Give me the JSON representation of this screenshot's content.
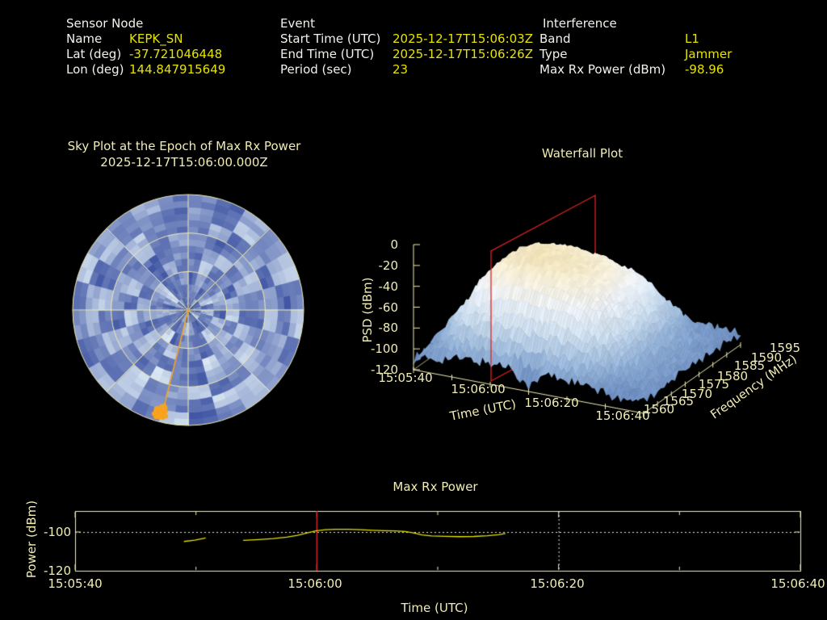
{
  "page": {
    "background": "#000000"
  },
  "colors": {
    "label_text": "#f2f2ec",
    "value_text": "#e6e300",
    "plot_text": "#f0ecb4",
    "data_line": "#e6e300",
    "event_marker_red": "#dd2222",
    "track_marker_orange": "#f9a31e",
    "grid_dotted": "#e8e8e8",
    "sky_palette_dark": "#31479c",
    "sky_palette_light": "#deecf6"
  },
  "header": {
    "sensor_node": {
      "title": "Sensor Node",
      "rows": [
        {
          "label": "Name",
          "value": "KEPK_SN"
        },
        {
          "label": "Lat (deg)",
          "value": "-37.721046448"
        },
        {
          "label": "Lon (deg)",
          "value": "144.847915649"
        }
      ]
    },
    "event": {
      "title": "Event",
      "rows": [
        {
          "label": "Start Time (UTC)",
          "value": "2025-12-17T15:06:03Z"
        },
        {
          "label": "End Time (UTC)",
          "value": "2025-12-17T15:06:26Z"
        },
        {
          "label": "Period (sec)",
          "value": "23"
        }
      ]
    },
    "interference": {
      "title": "Interference",
      "rows": [
        {
          "label": "Band",
          "value": "L1"
        },
        {
          "label": "Type",
          "value": "Jammer"
        },
        {
          "label": "Max Rx Power (dBm)",
          "value": "-98.96"
        }
      ]
    }
  },
  "chart_data": [
    {
      "id": "sky_plot",
      "type": "heatmap",
      "projection": "polar",
      "title": "Sky Plot at the Epoch of Max Rx Power",
      "subtitle": "2025-12-17T15:06:00.000Z",
      "elevation_rings_deg": [
        0,
        30,
        60
      ],
      "azimuth_spokes_deg": [
        0,
        45,
        90,
        135,
        180,
        225,
        270,
        315
      ],
      "value_range": [
        0,
        1
      ],
      "cells_hex_rows": [
        "46a35748c6573b64573a4856",
        "5738c4a65339b7465a38d465",
        "3956b83a7c4563d94a57c358",
        "6b4739c5a8364b6c38a47395",
        "48c5a63b79d4536a8c4b6357",
        "7359b647c8a35d46b3795c48",
        "5a4837c6953b86d4a5c37b64",
        "84c6a3597bd358c46a93b574",
        "6397c5b48a63d59b374c86a5"
      ],
      "marker": {
        "azimuth_deg": 194,
        "elevation_deg": 10
      }
    },
    {
      "id": "waterfall",
      "type": "surface",
      "title": "Waterfall Plot",
      "xlabel": "Time (UTC)",
      "ylabel": "Frequency (MHz)",
      "zlabel": "PSD (dBm)",
      "zlim": [
        -120,
        0
      ],
      "z_ticks": [
        0,
        -20,
        -40,
        -60,
        -80,
        -100,
        -120
      ],
      "time_start": "15:05:40",
      "time_end": "15:06:40",
      "time_ticks": [
        "15:05:40",
        "15:06:00",
        "15:06:20",
        "15:06:40"
      ],
      "freq_ticks": [
        1560,
        1565,
        1570,
        1575,
        1580,
        1585,
        1590,
        1595
      ],
      "slice_time": "15:06:00",
      "psd_model": {
        "base_dbm": -110,
        "peak_dbm": -22,
        "time_s": [
          0,
          5,
          10,
          15,
          20,
          25,
          30,
          35,
          40,
          45,
          50,
          55,
          60
        ],
        "time_envelope": [
          0.06,
          0.38,
          0.75,
          0.95,
          1.0,
          1.0,
          0.97,
          0.92,
          0.8,
          0.5,
          0.18,
          0.08,
          0.05
        ],
        "freq_mhz": [
          1560,
          1562.5,
          1565,
          1567.5,
          1570,
          1572.5,
          1575,
          1577.5,
          1580,
          1582.5,
          1585,
          1587.5,
          1590,
          1592.5,
          1595
        ],
        "freq_envelope": [
          0.12,
          0.32,
          0.55,
          0.8,
          0.92,
          1.0,
          1.0,
          1.0,
          0.97,
          0.93,
          0.86,
          0.76,
          0.62,
          0.38,
          0.16
        ],
        "front_notch": {
          "t_range_s": [
            26,
            34
          ],
          "f_range_mhz": [
            1560,
            1564
          ],
          "extra_db": -14
        }
      }
    },
    {
      "id": "max_rx_power",
      "type": "line",
      "title": "Max Rx Power",
      "xlabel": "Time (UTC)",
      "ylabel": "Power (dBm)",
      "x_ticks": [
        "15:05:40",
        "15:06:00",
        "15:06:20",
        "15:06:40"
      ],
      "y_ticks": [
        -100,
        -120
      ],
      "ylim": [
        -120,
        -88.7
      ],
      "xlim_s": [
        0,
        60
      ],
      "x_gridline_s": 40,
      "y_gridline_dbm": -100,
      "event_line": {
        "time": "15:06:00",
        "t_s": 20
      },
      "segments": [
        {
          "t_s": [
            9.0,
            9.9,
            10.8
          ],
          "dbm": [
            -104.9,
            -104.2,
            -103.1
          ]
        },
        {
          "t_s": [
            13.9,
            15.2,
            16.4,
            17.5,
            18.4,
            19.2,
            19.9,
            20.7,
            21.6,
            22.6,
            23.6,
            24.6,
            25.6,
            26.5,
            27.3,
            28.0,
            28.7,
            29.5,
            30.6,
            31.8,
            33.0,
            34.1,
            35.0,
            35.6
          ],
          "dbm": [
            -104.3,
            -103.9,
            -103.4,
            -102.7,
            -101.7,
            -100.5,
            -99.4,
            -98.8,
            -98.6,
            -98.6,
            -98.8,
            -99.1,
            -99.3,
            -99.4,
            -99.7,
            -100.5,
            -101.5,
            -102.0,
            -102.2,
            -102.4,
            -102.3,
            -101.9,
            -101.4,
            -100.8
          ]
        }
      ]
    }
  ]
}
